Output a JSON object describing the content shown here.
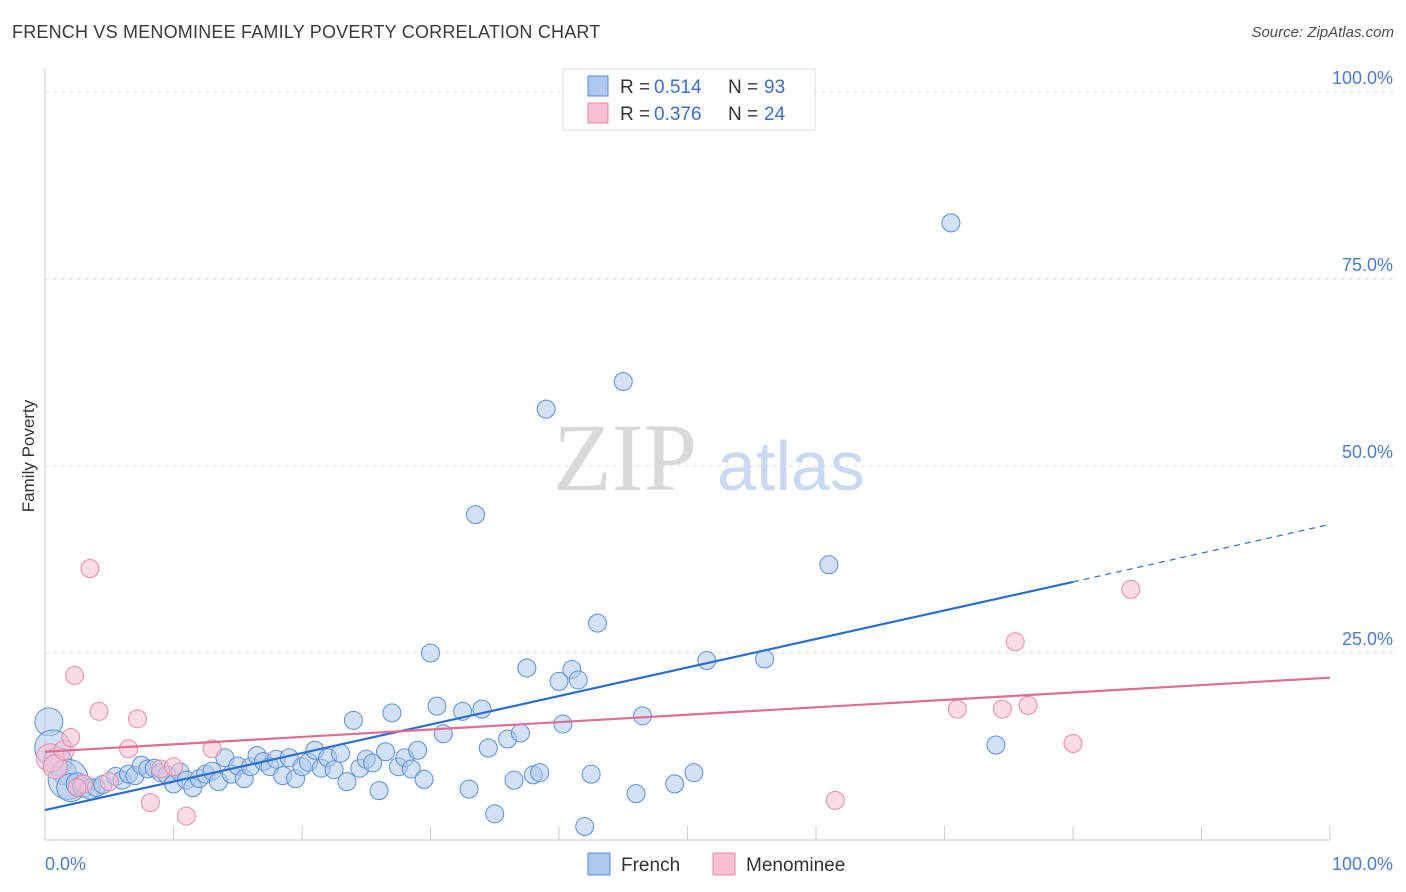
{
  "header": {
    "title": "FRENCH VS MENOMINEE FAMILY POVERTY CORRELATION CHART",
    "source": "Source: ZipAtlas.com"
  },
  "watermark": {
    "zip": "ZIP",
    "atlas": "atlas"
  },
  "legend": {
    "french": {
      "r_label": "R = ",
      "r_value": "0.514",
      "n_label": "N = ",
      "n_value": "93"
    },
    "menominee": {
      "r_label": "R = ",
      "r_value": "0.376",
      "n_label": "N = ",
      "n_value": "24"
    }
  },
  "colors": {
    "french_fill": "#aec8ee",
    "french_stroke": "#5b8fd6",
    "french_line": "#2a6fd0",
    "menominee_fill": "#f7bfd0",
    "menominee_stroke": "#e58aa8",
    "menominee_line": "#e06b96",
    "tick_label": "#4a7cc7",
    "grid": "#dddddd"
  },
  "chart_data": {
    "type": "scatter",
    "title": "FRENCH VS MENOMINEE FAMILY POVERTY CORRELATION CHART",
    "xlabel": "",
    "ylabel": "Family Poverty",
    "xlim": [
      0,
      100
    ],
    "ylim": [
      0,
      100
    ],
    "x_tick_labels": [
      "0.0%",
      "100.0%"
    ],
    "y_tick_labels": [
      "25.0%",
      "50.0%",
      "75.0%",
      "100.0%"
    ],
    "y_ticks": [
      25,
      50,
      75,
      100
    ],
    "legend_position": "top-center",
    "grid": true,
    "series": [
      {
        "name": "French",
        "points": [
          [
            0.3,
            15.8,
            14
          ],
          [
            0.6,
            12.3,
            18
          ],
          [
            1.0,
            10.5,
            14
          ],
          [
            1.5,
            9.0,
            12
          ],
          [
            1.8,
            8.1,
            20
          ],
          [
            2.0,
            7.0,
            14
          ],
          [
            2.5,
            7.5,
            11
          ],
          [
            3.0,
            7.2,
            11
          ],
          [
            3.5,
            6.8,
            10
          ],
          [
            4.0,
            7.0,
            9
          ],
          [
            4.5,
            7.4,
            9
          ],
          [
            5.5,
            8.5,
            9
          ],
          [
            6.0,
            8.0,
            9
          ],
          [
            6.5,
            8.8,
            9
          ],
          [
            7.0,
            8.6,
            9
          ],
          [
            7.5,
            10.0,
            9
          ],
          [
            8.0,
            9.5,
            9
          ],
          [
            8.5,
            9.6,
            9
          ],
          [
            9.0,
            9.0,
            9
          ],
          [
            9.5,
            8.7,
            9
          ],
          [
            10.0,
            7.5,
            9
          ],
          [
            10.5,
            9.1,
            9
          ],
          [
            11.0,
            8.0,
            9
          ],
          [
            11.5,
            7.0,
            9
          ],
          [
            12.0,
            8.2,
            9
          ],
          [
            12.5,
            8.8,
            9
          ],
          [
            13.0,
            9.2,
            9
          ],
          [
            13.5,
            7.8,
            9
          ],
          [
            14.0,
            11.0,
            9
          ],
          [
            14.5,
            8.8,
            9
          ],
          [
            15.0,
            9.9,
            9
          ],
          [
            15.5,
            8.2,
            9
          ],
          [
            16.0,
            9.8,
            9
          ],
          [
            16.5,
            11.3,
            9
          ],
          [
            17.0,
            10.5,
            9
          ],
          [
            17.5,
            9.8,
            9
          ],
          [
            18.0,
            10.8,
            9
          ],
          [
            18.5,
            8.6,
            9
          ],
          [
            19.0,
            11.0,
            9
          ],
          [
            19.5,
            8.2,
            9
          ],
          [
            20.0,
            9.8,
            9
          ],
          [
            20.5,
            10.4,
            9
          ],
          [
            21.0,
            12.0,
            9
          ],
          [
            21.5,
            9.6,
            9
          ],
          [
            22.0,
            11.0,
            9
          ],
          [
            22.5,
            9.4,
            9
          ],
          [
            23.0,
            11.6,
            9
          ],
          [
            23.5,
            7.8,
            9
          ],
          [
            24.0,
            16.0,
            9
          ],
          [
            24.5,
            9.6,
            9
          ],
          [
            25.0,
            10.8,
            9
          ],
          [
            25.5,
            10.3,
            9
          ],
          [
            26.0,
            6.6,
            9
          ],
          [
            26.5,
            11.8,
            9
          ],
          [
            27.0,
            17.0,
            9
          ],
          [
            27.5,
            9.8,
            9
          ],
          [
            28.0,
            11.0,
            9
          ],
          [
            28.5,
            9.5,
            9
          ],
          [
            29.0,
            12.0,
            9
          ],
          [
            29.5,
            8.1,
            9
          ],
          [
            30.0,
            25.0,
            9
          ],
          [
            30.5,
            17.9,
            9
          ],
          [
            31.0,
            14.2,
            9
          ],
          [
            32.5,
            17.2,
            9
          ],
          [
            33.0,
            6.8,
            9
          ],
          [
            33.5,
            43.5,
            9
          ],
          [
            34.0,
            17.5,
            9
          ],
          [
            34.5,
            12.3,
            9
          ],
          [
            35.0,
            3.5,
            9
          ],
          [
            36.0,
            13.5,
            9
          ],
          [
            36.5,
            8.0,
            9
          ],
          [
            37.0,
            14.3,
            9
          ],
          [
            37.5,
            23.0,
            9
          ],
          [
            38.0,
            8.7,
            9
          ],
          [
            38.5,
            9.0,
            9
          ],
          [
            39.0,
            57.6,
            9
          ],
          [
            40.0,
            21.2,
            9
          ],
          [
            40.3,
            15.5,
            9
          ],
          [
            41.0,
            22.8,
            9
          ],
          [
            41.5,
            21.4,
            9
          ],
          [
            42.0,
            1.8,
            9
          ],
          [
            42.5,
            8.8,
            9
          ],
          [
            43.0,
            29.0,
            9
          ],
          [
            45.0,
            61.3,
            9
          ],
          [
            46.0,
            6.2,
            9
          ],
          [
            46.5,
            16.6,
            9
          ],
          [
            49.0,
            7.5,
            9
          ],
          [
            50.5,
            9.0,
            9
          ],
          [
            51.5,
            24.0,
            9
          ],
          [
            56.0,
            24.2,
            9
          ],
          [
            61.0,
            36.8,
            9
          ],
          [
            70.5,
            82.5,
            9
          ],
          [
            74.0,
            12.7,
            9
          ]
        ],
        "trend": {
          "x0": 0,
          "y0": 4.0,
          "x1": 80,
          "y1": 34.5,
          "x_dash_end": 100,
          "y_dash_end": 42.2
        }
      },
      {
        "name": "Menominee",
        "points": [
          [
            0.4,
            11.0,
            14
          ],
          [
            0.8,
            9.8,
            12
          ],
          [
            1.5,
            12.0,
            10
          ],
          [
            2.0,
            13.7,
            9
          ],
          [
            2.3,
            22.0,
            9
          ],
          [
            3.0,
            7.5,
            9
          ],
          [
            3.5,
            36.3,
            9
          ],
          [
            4.2,
            17.2,
            9
          ],
          [
            5.0,
            7.8,
            9
          ],
          [
            6.5,
            12.2,
            9
          ],
          [
            7.2,
            16.2,
            9
          ],
          [
            8.2,
            5.0,
            9
          ],
          [
            9.0,
            9.5,
            9
          ],
          [
            10.0,
            9.8,
            9
          ],
          [
            11.0,
            3.2,
            9
          ],
          [
            13.0,
            12.2,
            9
          ],
          [
            61.5,
            5.3,
            9
          ],
          [
            71.0,
            17.5,
            9
          ],
          [
            74.5,
            17.5,
            9
          ],
          [
            75.5,
            26.5,
            9
          ],
          [
            76.5,
            18.0,
            9
          ],
          [
            80.0,
            12.9,
            9
          ],
          [
            84.5,
            33.5,
            9
          ],
          [
            2.5,
            7.0,
            9
          ]
        ],
        "trend": {
          "x0": 0,
          "y0": 11.8,
          "x1": 100,
          "y1": 21.7
        }
      }
    ]
  },
  "bottom_legend": {
    "french_label": "French",
    "menominee_label": "Menominee"
  }
}
